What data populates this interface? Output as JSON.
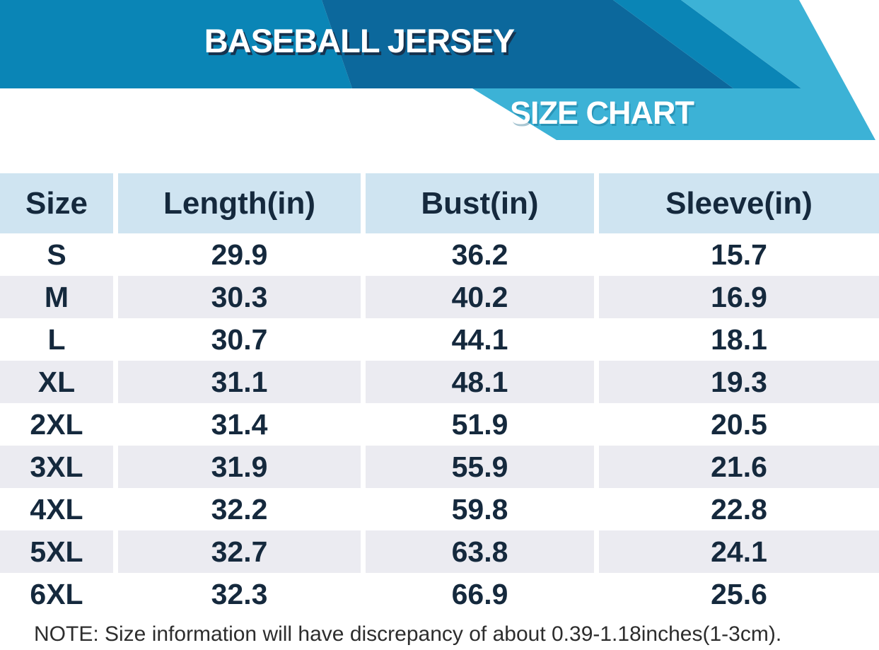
{
  "banner": {
    "title": "BASEBALL JERSEY",
    "ribbon_label": "SIZE CHART"
  },
  "colors": {
    "band_medium_blue": "#0a85b6",
    "band_dark_blue": "#0c689c",
    "ribbon_cyan": "#3cb2d6",
    "table_header_bg": "#cfe4f1",
    "row_alt_bg": "#ebebf1",
    "table_text_navy": "#15293d",
    "title_shadow_navy": "#17334f",
    "note_text": "#2d2d2d"
  },
  "chart_data": {
    "type": "table",
    "title": "BASEBALL JERSEY",
    "subtitle": "SIZE CHART",
    "columns": [
      "Size",
      "Length(in)",
      "Bust(in)",
      "Sleeve(in)"
    ],
    "rows": [
      [
        "S",
        29.9,
        36.2,
        15.7
      ],
      [
        "M",
        30.3,
        40.2,
        16.9
      ],
      [
        "L",
        30.7,
        44.1,
        18.1
      ],
      [
        "XL",
        31.1,
        48.1,
        19.3
      ],
      [
        "2XL",
        31.4,
        51.9,
        20.5
      ],
      [
        "3XL",
        31.9,
        55.9,
        21.6
      ],
      [
        "4XL",
        32.2,
        59.8,
        22.8
      ],
      [
        "5XL",
        32.7,
        63.8,
        24.1
      ],
      [
        "6XL",
        32.3,
        66.9,
        25.6
      ]
    ],
    "units": "inches",
    "layout": "striped rows, alternating white / light gray"
  },
  "note": "NOTE: Size information will have discrepancy of about 0.39-1.18inches(1-3cm)."
}
